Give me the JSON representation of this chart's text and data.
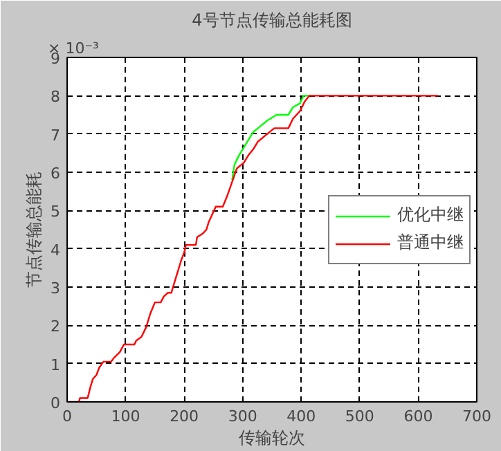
{
  "chart_data": {
    "type": "line",
    "title": "4号节点传输总能耗图",
    "xlabel": "传输轮次",
    "ylabel": "节点传输总能耗",
    "annotations": [
      "× 10⁻³"
    ],
    "xlim": [
      0,
      700
    ],
    "ylim": [
      0,
      9
    ],
    "xticks": [
      0,
      100,
      200,
      300,
      400,
      500,
      600,
      700
    ],
    "yticks": [
      0,
      1,
      2,
      3,
      4,
      5,
      6,
      7,
      8,
      9
    ],
    "grid": true,
    "legend": "right",
    "series": [
      {
        "name": "优化中继",
        "color": "#00ff00",
        "x": [
          282,
          286,
          294,
          302,
          310,
          318,
          330,
          342,
          358,
          378,
          386,
          398,
          404,
          414
        ],
        "values": [
          5.8,
          6.2,
          6.45,
          6.65,
          6.85,
          7.05,
          7.2,
          7.35,
          7.5,
          7.5,
          7.7,
          7.8,
          8.0,
          8.0
        ]
      },
      {
        "name": "普通中继",
        "color": "#ff0000",
        "x": [
          0,
          20,
          22,
          35,
          40,
          44,
          50,
          55,
          62,
          75,
          80,
          90,
          97,
          115,
          118,
          127,
          135,
          142,
          150,
          160,
          165,
          172,
          178,
          183,
          188,
          195,
          200,
          203,
          220,
          222,
          232,
          238,
          242,
          254,
          266,
          274,
          282,
          290,
          302,
          310,
          318,
          326,
          338,
          354,
          378,
          386,
          398,
          406,
          414,
          634
        ],
        "values": [
          0,
          0,
          0.1,
          0.1,
          0.4,
          0.6,
          0.7,
          0.9,
          1.05,
          1.05,
          1.15,
          1.3,
          1.5,
          1.5,
          1.6,
          1.7,
          1.95,
          2.3,
          2.6,
          2.6,
          2.75,
          2.85,
          2.85,
          3.1,
          3.35,
          3.7,
          3.9,
          4.1,
          4.1,
          4.3,
          4.4,
          4.5,
          4.7,
          5.1,
          5.1,
          5.4,
          5.75,
          6.1,
          6.25,
          6.45,
          6.6,
          6.8,
          6.95,
          7.15,
          7.15,
          7.4,
          7.6,
          7.85,
          8.0,
          8.0
        ]
      }
    ]
  }
}
